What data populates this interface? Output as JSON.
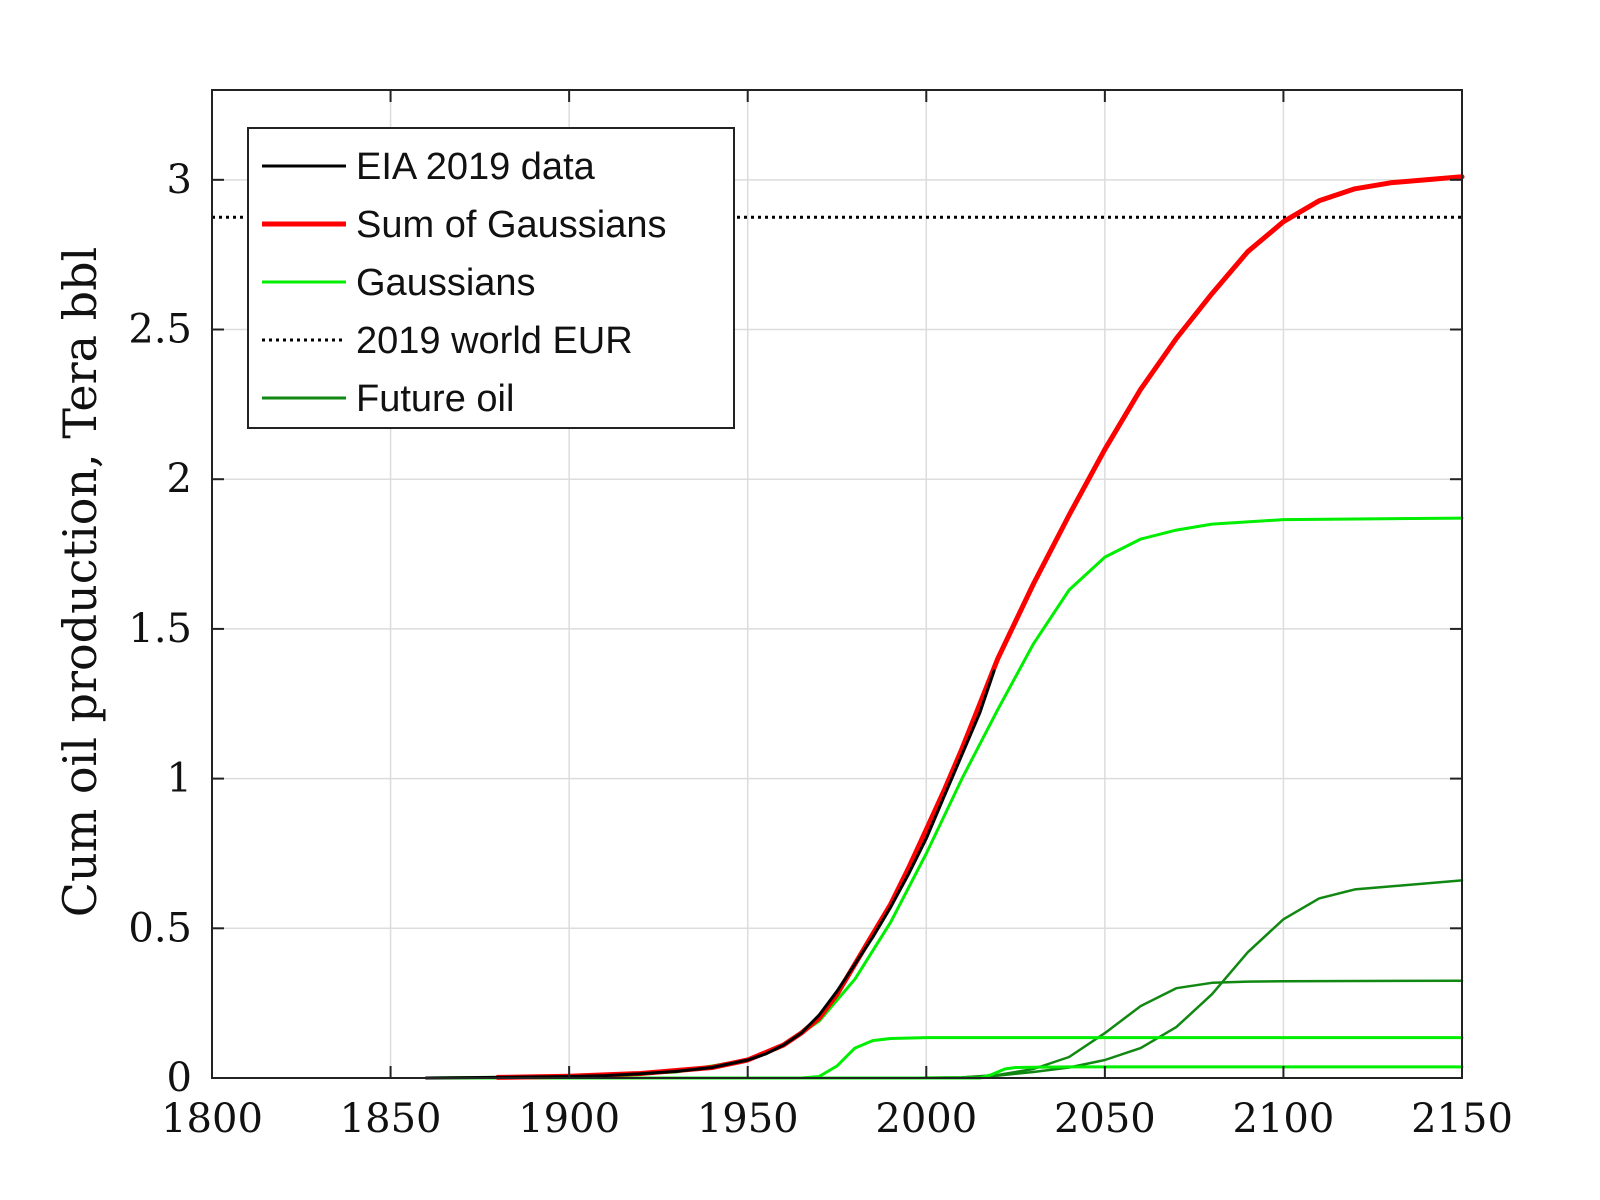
{
  "chart_data": {
    "type": "line",
    "title": "",
    "xlabel": "",
    "ylabel": "Cum oil production, Tera bbl",
    "xlim": [
      1800,
      2150
    ],
    "ylim": [
      0,
      3.3
    ],
    "xticks": [
      1800,
      1850,
      1900,
      1950,
      2000,
      2050,
      2100,
      2150
    ],
    "yticks": [
      0,
      0.5,
      1,
      1.5,
      2,
      2.5,
      3
    ],
    "ytick_labels": [
      "0",
      "0.5",
      "1",
      "1.5",
      "2",
      "2.5",
      "3"
    ],
    "grid": true,
    "legend_position": "top-left",
    "colors": {
      "eia": "#000000",
      "sum": "#ff0000",
      "gaussian": "#00ee00",
      "future": "#118811",
      "eur": "#000000"
    },
    "legend": [
      {
        "key": "eia",
        "label": "EIA 2019 data",
        "style": "solid"
      },
      {
        "key": "sum",
        "label": "Sum of Gaussians",
        "style": "solid-thick"
      },
      {
        "key": "gaussian",
        "label": "Gaussians",
        "style": "solid"
      },
      {
        "key": "eur",
        "label": "2019 world EUR",
        "style": "dotted"
      },
      {
        "key": "future",
        "label": "Future oil",
        "style": "solid"
      }
    ],
    "eur_value": 2.875,
    "series": [
      {
        "key": "eia",
        "x": [
          1860,
          1880,
          1900,
          1910,
          1920,
          1930,
          1940,
          1950,
          1955,
          1960,
          1965,
          1970,
          1975,
          1980,
          1985,
          1990,
          1995,
          2000,
          2005,
          2010,
          2015,
          2019
        ],
        "y": [
          0,
          0.002,
          0.005,
          0.008,
          0.014,
          0.022,
          0.035,
          0.06,
          0.08,
          0.11,
          0.15,
          0.21,
          0.29,
          0.38,
          0.47,
          0.57,
          0.68,
          0.8,
          0.94,
          1.08,
          1.22,
          1.36
        ]
      },
      {
        "key": "sum",
        "x": [
          1880,
          1900,
          1920,
          1940,
          1950,
          1960,
          1965,
          1970,
          1975,
          1980,
          1985,
          1990,
          1995,
          2000,
          2005,
          2010,
          2015,
          2020,
          2030,
          2040,
          2050,
          2060,
          2070,
          2080,
          2090,
          2100,
          2110,
          2120,
          2130,
          2140,
          2150
        ],
        "y": [
          0.002,
          0.006,
          0.015,
          0.035,
          0.06,
          0.11,
          0.15,
          0.2,
          0.28,
          0.38,
          0.48,
          0.58,
          0.7,
          0.83,
          0.96,
          1.1,
          1.25,
          1.4,
          1.65,
          1.88,
          2.1,
          2.3,
          2.47,
          2.62,
          2.76,
          2.86,
          2.93,
          2.97,
          2.99,
          3.0,
          3.01
        ]
      },
      {
        "key": "gaussian",
        "x": [
          1860,
          1900,
          1930,
          1950,
          1960,
          1970,
          1980,
          1990,
          2000,
          2010,
          2020,
          2030,
          2040,
          2050,
          2060,
          2070,
          2080,
          2100,
          2150
        ],
        "y": [
          0,
          0.005,
          0.02,
          0.06,
          0.11,
          0.19,
          0.33,
          0.52,
          0.75,
          1.0,
          1.23,
          1.45,
          1.63,
          1.74,
          1.8,
          1.83,
          1.85,
          1.865,
          1.87
        ]
      },
      {
        "key": "gaussian",
        "x": [
          1860,
          1965,
          1970,
          1975,
          1980,
          1985,
          1990,
          2000,
          2150
        ],
        "y": [
          0,
          0,
          0.005,
          0.04,
          0.1,
          0.125,
          0.132,
          0.135,
          0.135
        ]
      },
      {
        "key": "gaussian",
        "x": [
          1860,
          2015,
          2018,
          2020,
          2022,
          2025,
          2030,
          2040,
          2150
        ],
        "y": [
          0,
          0,
          0.01,
          0.02,
          0.03,
          0.035,
          0.036,
          0.037,
          0.037
        ]
      },
      {
        "key": "future",
        "x": [
          1990,
          2010,
          2020,
          2030,
          2040,
          2050,
          2060,
          2070,
          2080,
          2090,
          2100,
          2150
        ],
        "y": [
          0,
          0.002,
          0.01,
          0.03,
          0.07,
          0.15,
          0.24,
          0.3,
          0.318,
          0.322,
          0.323,
          0.325
        ]
      },
      {
        "key": "future",
        "x": [
          1990,
          2010,
          2020,
          2030,
          2040,
          2050,
          2060,
          2070,
          2080,
          2090,
          2100,
          2110,
          2120,
          2150
        ],
        "y": [
          0,
          0.002,
          0.008,
          0.02,
          0.035,
          0.06,
          0.1,
          0.17,
          0.28,
          0.42,
          0.53,
          0.6,
          0.63,
          0.66
        ]
      }
    ]
  }
}
